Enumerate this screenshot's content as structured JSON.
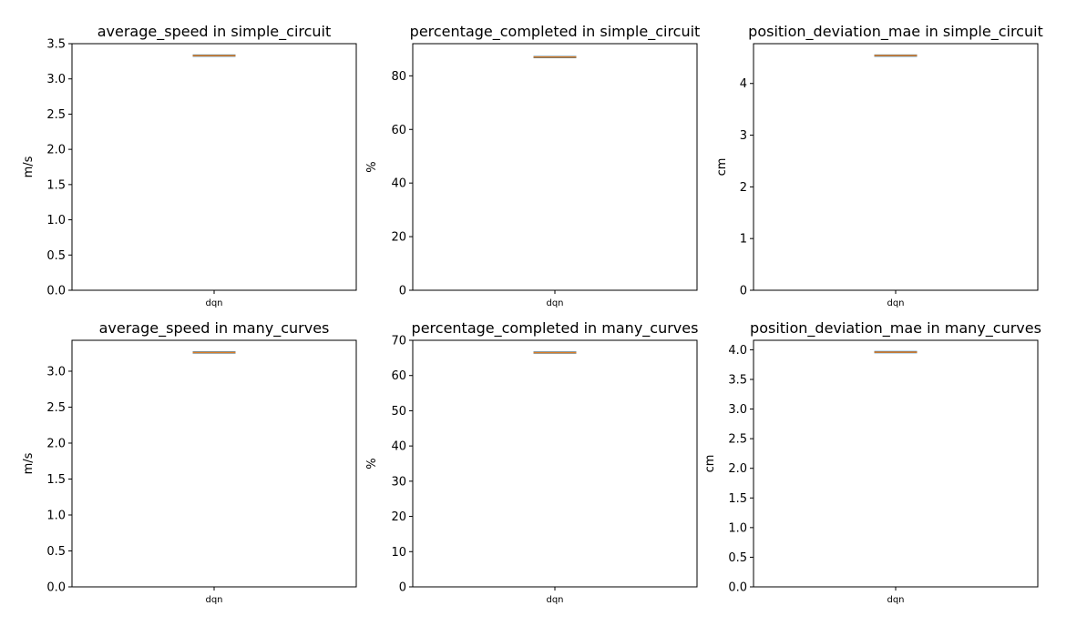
{
  "chart_data": [
    {
      "type": "box",
      "title": "average_speed in simple_circuit",
      "ylabel": "m/s",
      "categories": [
        "dqn"
      ],
      "ylim": [
        0,
        3.5
      ],
      "yticks": [
        0.0,
        0.5,
        1.0,
        1.5,
        2.0,
        2.5,
        3.0,
        3.5
      ],
      "ytick_labels": [
        "0.0",
        "0.5",
        "1.0",
        "1.5",
        "2.0",
        "2.5",
        "3.0",
        "3.5"
      ],
      "values": [
        3.33
      ],
      "box_color": "#1f77b4",
      "median_color": "#ff7f0e"
    },
    {
      "type": "box",
      "title": "percentage_completed in simple_circuit",
      "ylabel": "%",
      "categories": [
        "dqn"
      ],
      "ylim": [
        0,
        92
      ],
      "yticks": [
        0,
        20,
        40,
        60,
        80
      ],
      "ytick_labels": [
        "0",
        "20",
        "40",
        "60",
        "80"
      ],
      "values": [
        87
      ],
      "box_color": "#1f77b4",
      "median_color": "#ff7f0e"
    },
    {
      "type": "box",
      "title": "position_deviation_mae in simple_circuit",
      "ylabel": "cm",
      "categories": [
        "dqn"
      ],
      "ylim": [
        0,
        4.77
      ],
      "yticks": [
        0,
        1,
        2,
        3,
        4
      ],
      "ytick_labels": [
        "0",
        "1",
        "2",
        "3",
        "4"
      ],
      "values": [
        4.54
      ],
      "box_color": "#1f77b4",
      "median_color": "#ff7f0e"
    },
    {
      "type": "box",
      "title": "average_speed in many_curves",
      "ylabel": "m/s",
      "categories": [
        "dqn"
      ],
      "ylim": [
        0,
        3.43
      ],
      "yticks": [
        0.0,
        0.5,
        1.0,
        1.5,
        2.0,
        2.5,
        3.0
      ],
      "ytick_labels": [
        "0.0",
        "0.5",
        "1.0",
        "1.5",
        "2.0",
        "2.5",
        "3.0"
      ],
      "values": [
        3.26
      ],
      "box_color": "#1f77b4",
      "median_color": "#ff7f0e"
    },
    {
      "type": "box",
      "title": "percentage_completed in many_curves",
      "ylabel": "%",
      "categories": [
        "dqn"
      ],
      "ylim": [
        0,
        70
      ],
      "yticks": [
        0,
        10,
        20,
        30,
        40,
        50,
        60,
        70
      ],
      "ytick_labels": [
        "0",
        "10",
        "20",
        "30",
        "40",
        "50",
        "60",
        "70"
      ],
      "values": [
        66.5
      ],
      "box_color": "#1f77b4",
      "median_color": "#ff7f0e"
    },
    {
      "type": "box",
      "title": "position_deviation_mae in many_curves",
      "ylabel": "cm",
      "categories": [
        "dqn"
      ],
      "ylim": [
        0,
        4.16
      ],
      "yticks": [
        0.0,
        0.5,
        1.0,
        1.5,
        2.0,
        2.5,
        3.0,
        3.5,
        4.0
      ],
      "ytick_labels": [
        "0.0",
        "0.5",
        "1.0",
        "1.5",
        "2.0",
        "2.5",
        "3.0",
        "3.5",
        "4.0"
      ],
      "values": [
        3.96
      ],
      "box_color": "#1f77b4",
      "median_color": "#ff7f0e"
    }
  ]
}
